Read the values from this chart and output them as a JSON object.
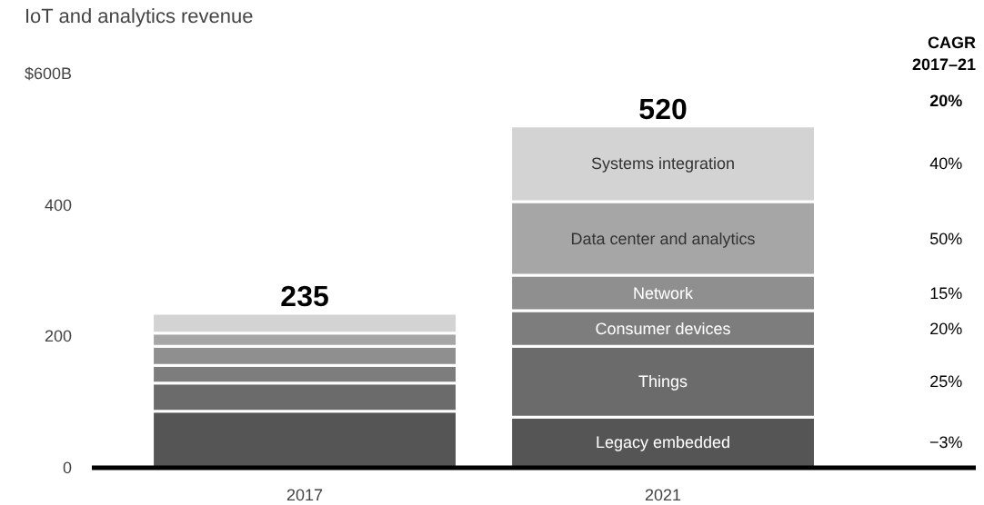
{
  "chart_data": {
    "type": "bar",
    "title": "IoT and analytics revenue",
    "categories": [
      "2017",
      "2021"
    ],
    "stacked": true,
    "series": [
      {
        "name": "Legacy embedded",
        "color": "#555555",
        "values": [
          86,
          77
        ]
      },
      {
        "name": "Things",
        "color": "#6b6b6b",
        "values": [
          43,
          108
        ]
      },
      {
        "name": "Consumer devices",
        "color": "#7d7d7d",
        "values": [
          27,
          54
        ]
      },
      {
        "name": "Network",
        "color": "#8f8f8f",
        "values": [
          29,
          54
        ]
      },
      {
        "name": "Data center and analytics",
        "color": "#a6a6a6",
        "values": [
          20,
          112
        ]
      },
      {
        "name": "Systems integration",
        "color": "#d3d3d3",
        "values": [
          30,
          115
        ]
      }
    ],
    "totals": [
      "235",
      "520"
    ],
    "ylim": [
      0,
      600
    ],
    "yticks": [
      0,
      200,
      400,
      {
        "value": 600,
        "label": "$600B"
      }
    ],
    "grid": false,
    "annotations": [
      "CAGR",
      "2017–21",
      "20%",
      "−3%",
      "25%",
      "20%",
      "15%",
      "50%",
      "40%"
    ]
  }
}
